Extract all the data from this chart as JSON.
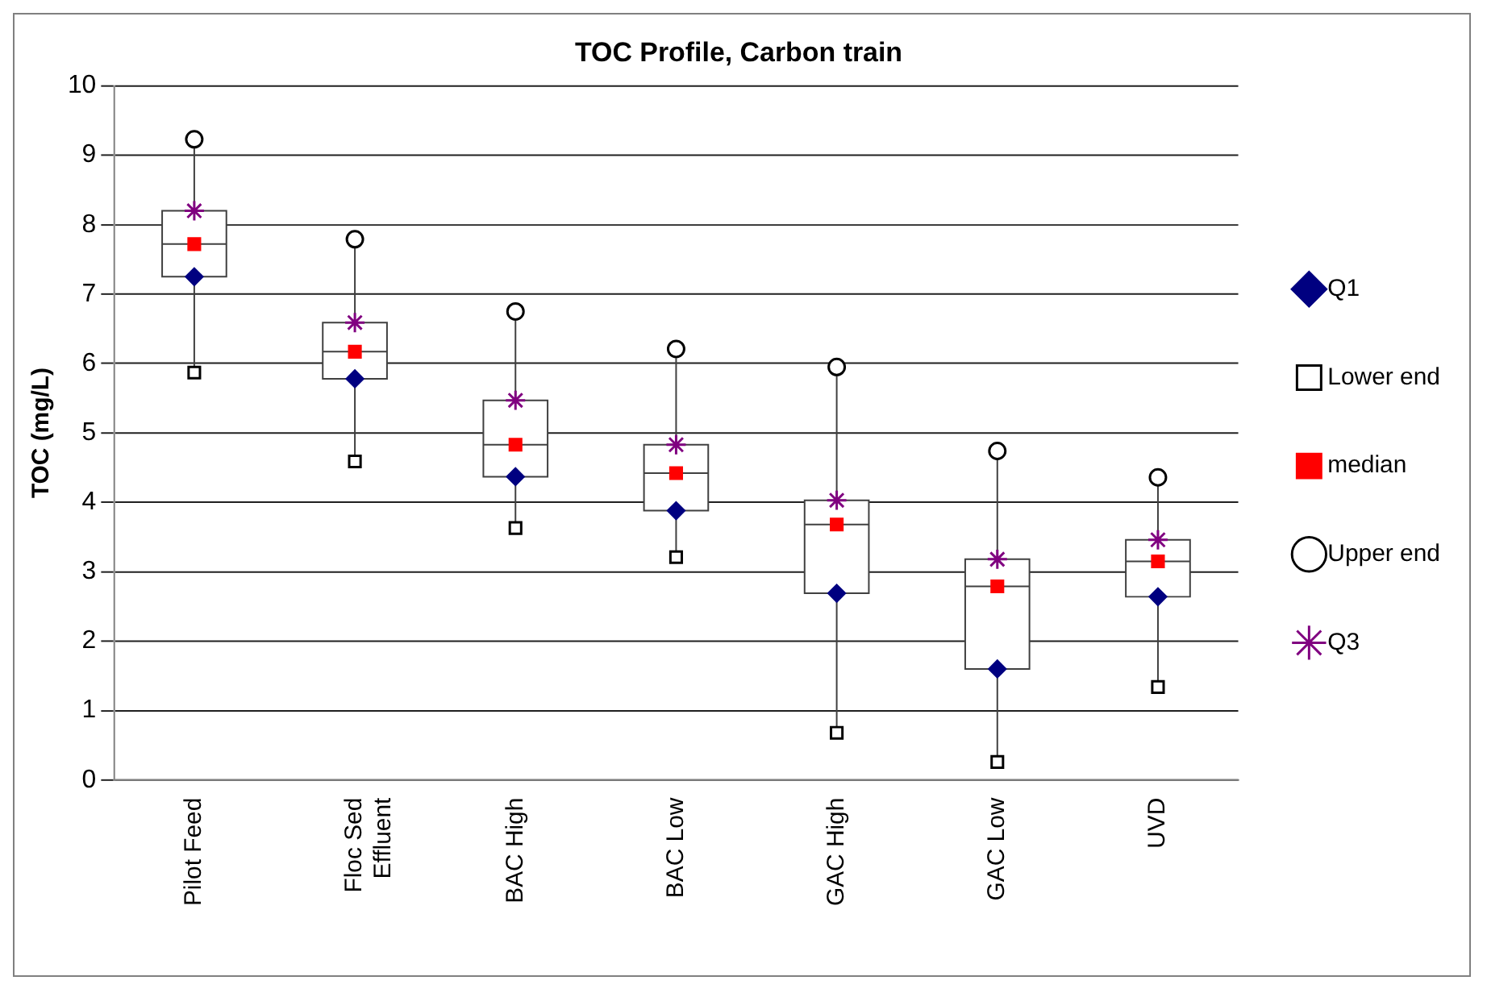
{
  "chart_data": {
    "type": "box",
    "title": "TOC Profile, Carbon train",
    "ylabel": "TOC (mg/L)",
    "categories": [
      "Pilot Feed",
      "Floc Sed Effluent",
      "BAC High",
      "BAC Low",
      "GAC High",
      "GAC Low",
      "UVD"
    ],
    "boxes": [
      {
        "low": 5.87,
        "q1": 7.25,
        "median": 7.72,
        "q3": 8.2,
        "high": 9.23
      },
      {
        "low": 4.59,
        "q1": 5.78,
        "median": 6.17,
        "q3": 6.59,
        "high": 7.79
      },
      {
        "low": 3.63,
        "q1": 4.37,
        "median": 4.83,
        "q3": 5.47,
        "high": 6.75
      },
      {
        "low": 3.21,
        "q1": 3.88,
        "median": 4.42,
        "q3": 4.83,
        "high": 6.21
      },
      {
        "low": 0.68,
        "q1": 2.69,
        "median": 3.68,
        "q3": 4.03,
        "high": 5.95
      },
      {
        "low": 0.26,
        "q1": 1.6,
        "median": 2.79,
        "q3": 3.18,
        "high": 4.74
      },
      {
        "low": 1.34,
        "q1": 2.64,
        "median": 3.15,
        "q3": 3.46,
        "high": 4.36
      }
    ],
    "series": [
      {
        "type": "scatter",
        "name": "Q1",
        "color": "#000080",
        "marker": "diamond",
        "values": [
          7.25,
          5.78,
          4.37,
          3.88,
          2.69,
          1.6,
          2.64
        ]
      },
      {
        "type": "scatter",
        "name": "Lower end",
        "color": "#000000",
        "marker": "square",
        "values": [
          5.87,
          4.59,
          3.63,
          3.21,
          0.68,
          0.26,
          1.34
        ]
      },
      {
        "type": "scatter",
        "name": "median",
        "color": "#ff0000",
        "marker": "square",
        "values": [
          7.72,
          6.17,
          4.83,
          4.42,
          3.68,
          2.79,
          3.15
        ]
      },
      {
        "type": "scatter",
        "name": "Upper end",
        "color": "#000000",
        "marker": "circle",
        "values": [
          9.23,
          7.79,
          6.75,
          6.21,
          5.95,
          4.74,
          4.36
        ]
      },
      {
        "type": "scatter",
        "name": "Q3",
        "color": "#800080",
        "marker": "cross",
        "values": [
          8.2,
          6.59,
          5.47,
          4.83,
          4.03,
          3.18,
          3.46
        ]
      }
    ],
    "ylim": [
      0,
      10
    ],
    "yticks": [
      0,
      1,
      2,
      3,
      4,
      5,
      6,
      7,
      8,
      9,
      10
    ],
    "grid": "y",
    "legend": "right"
  }
}
